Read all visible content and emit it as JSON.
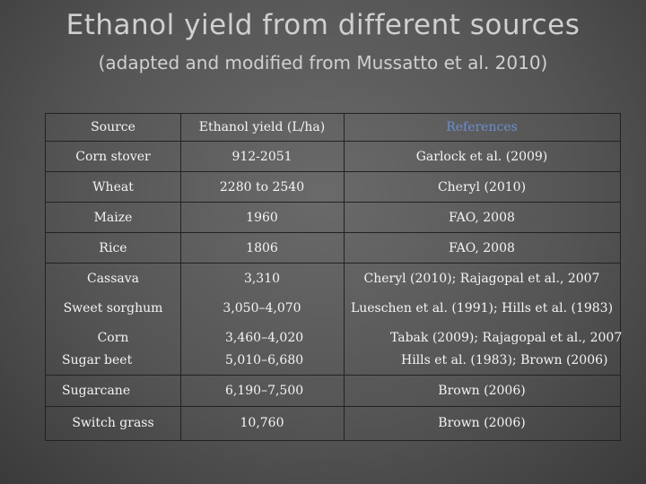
{
  "title": "Ethanol yield from different sources",
  "subtitle": "(adapted and modified from Mussatto et al. 2010)",
  "table": {
    "headers": [
      "Source",
      "Ethanol yield (L/ha)",
      "References"
    ],
    "rows": [
      [
        "Corn stover",
        "912-2051",
        "Garlock et al. (2009)"
      ],
      [
        "Wheat",
        "2280 to 2540",
        "Cheryl (2010)"
      ],
      [
        "Maize",
        "1960",
        "FAO, 2008"
      ],
      [
        "Rice",
        "1806",
        "FAO, 2008"
      ],
      [
        "Cassava",
        "3,310",
        "Cheryl (2010); Rajagopal et al., 2007"
      ],
      [
        "Sweet sorghum",
        "3,050–4,070",
        "Lueschen et al. (1991); Hills et al. (1983)"
      ],
      [
        "Corn",
        "3,460–4,020",
        "Tabak (2009); Rajagopal et al., 2007"
      ],
      [
        "Sugar beet",
        "5,010–6,680",
        "Hills et al. (1983); Brown (2006)"
      ],
      [
        "Sugarcane",
        "6,190–7,500",
        "Brown (2006)"
      ],
      [
        "Switch grass",
        "10,760",
        "Brown (2006)"
      ]
    ]
  }
}
